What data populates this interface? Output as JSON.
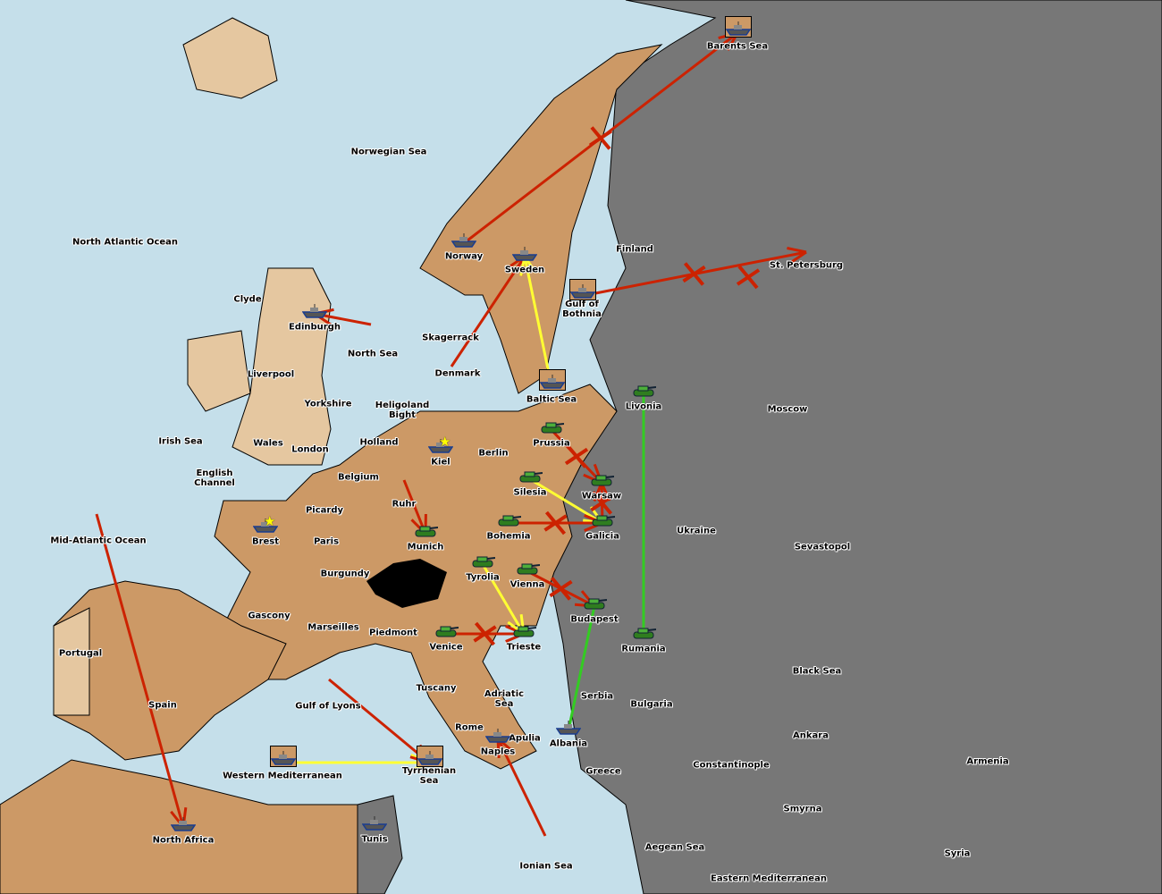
{
  "colors": {
    "water": "#c5dfea",
    "player": "#cc9966",
    "neutral": "#777777",
    "other": "#e5c7a0",
    "move": "#cc2200",
    "support": "#ffff33",
    "convoy": "#33cc22"
  },
  "provinces": [
    "Barents Sea",
    "Norwegian Sea",
    "North Atlantic Ocean",
    "Finland",
    "St. Petersburg",
    "Norway",
    "Sweden",
    "Gulf of\nBothnia",
    "Clyde",
    "Edinburgh",
    "North Sea",
    "Skagerrack",
    "Liverpool",
    "Denmark",
    "Baltic Sea",
    "Yorkshire",
    "Heligoland\nBight",
    "Moscow",
    "Livonia",
    "Irish Sea",
    "Wales",
    "London",
    "Holland",
    "Kiel",
    "Berlin",
    "Prussia",
    "English\nChannel",
    "Belgium",
    "Silesia",
    "Warsaw",
    "Picardy",
    "Ruhr",
    "Ukraine",
    "Brest",
    "Paris",
    "Munich",
    "Bohemia",
    "Galicia",
    "Mid-Atlantic Ocean",
    "Sevastopol",
    "Burgundy",
    "Tyrolia",
    "Vienna",
    "Gascony",
    "Budapest",
    "Marseilles",
    "Piedmont",
    "Venice",
    "Trieste",
    "Rumania",
    "Portugal",
    "Black Sea",
    "Tuscany",
    "Serbia",
    "Adriatic\nSea",
    "Bulgaria",
    "Spain",
    "Gulf of Lyons",
    "Rome",
    "Apulia",
    "Ankara",
    "Albania",
    "Naples",
    "Constantinople",
    "Armenia",
    "Western Mediterranean",
    "Tyrrhenian\nSea",
    "Greece",
    "Smyrna",
    "North Africa",
    "Tunis",
    "Aegean Sea",
    "Syria",
    "Ionian Sea",
    "Eastern Mediterranean"
  ],
  "units": [
    {
      "type": "fleet",
      "at": "Barents Sea",
      "boxed": true
    },
    {
      "type": "fleet",
      "at": "Norway"
    },
    {
      "type": "fleet",
      "at": "Sweden"
    },
    {
      "type": "fleet",
      "at": "Gulf of\nBothnia",
      "boxed": true
    },
    {
      "type": "fleet",
      "at": "Edinburgh"
    },
    {
      "type": "fleet",
      "at": "Baltic Sea",
      "boxed": true
    },
    {
      "type": "fleet",
      "at": "Kiel"
    },
    {
      "type": "fleet",
      "at": "Brest"
    },
    {
      "type": "fleet",
      "at": "Western Mediterranean",
      "boxed": true
    },
    {
      "type": "fleet",
      "at": "Tyrrhenian\nSea",
      "boxed": true
    },
    {
      "type": "fleet",
      "at": "Naples"
    },
    {
      "type": "fleet",
      "at": "Albania"
    },
    {
      "type": "fleet",
      "at": "North Africa"
    },
    {
      "type": "fleet",
      "at": "Tunis"
    },
    {
      "type": "army",
      "at": "Livonia"
    },
    {
      "type": "army",
      "at": "Prussia"
    },
    {
      "type": "army",
      "at": "Silesia"
    },
    {
      "type": "army",
      "at": "Warsaw"
    },
    {
      "type": "army",
      "at": "Munich"
    },
    {
      "type": "army",
      "at": "Bohemia"
    },
    {
      "type": "army",
      "at": "Galicia"
    },
    {
      "type": "army",
      "at": "Tyrolia"
    },
    {
      "type": "army",
      "at": "Vienna"
    },
    {
      "type": "army",
      "at": "Budapest"
    },
    {
      "type": "army",
      "at": "Venice"
    },
    {
      "type": "army",
      "at": "Trieste"
    },
    {
      "type": "army",
      "at": "Rumania"
    }
  ],
  "orders": [
    {
      "kind": "move",
      "from": "Norway",
      "to": "Barents Sea",
      "failed": true
    },
    {
      "kind": "move",
      "from": "Gulf of\nBothnia",
      "to": "St. Petersburg",
      "failed": true
    },
    {
      "kind": "move",
      "from": "North Sea",
      "to": "Edinburgh"
    },
    {
      "kind": "move",
      "from": "Denmark",
      "to": "Sweden"
    },
    {
      "kind": "support",
      "from": "Baltic Sea",
      "to": "Sweden"
    },
    {
      "kind": "move",
      "from": "Prussia",
      "to": "Warsaw",
      "failed": true
    },
    {
      "kind": "support",
      "from": "Silesia",
      "to": "Galicia"
    },
    {
      "kind": "move",
      "from": "Bohemia",
      "to": "Galicia",
      "failed": true
    },
    {
      "kind": "move",
      "from": "Ruhr",
      "to": "Munich"
    },
    {
      "kind": "move",
      "from": "Vienna",
      "to": "Budapest",
      "failed": true
    },
    {
      "kind": "move",
      "from": "Venice",
      "to": "Trieste",
      "failed": true
    },
    {
      "kind": "support",
      "from": "Tyrolia",
      "to": "Trieste"
    },
    {
      "kind": "move",
      "from": "Galicia",
      "to": "Warsaw",
      "failed": true
    },
    {
      "kind": "hold-support",
      "from": "Livonia",
      "to": "Rumania"
    },
    {
      "kind": "hold-support",
      "from": "Albania",
      "to": "Budapest"
    },
    {
      "kind": "support",
      "from": "Western Mediterranean",
      "to": "Tyrrhenian\nSea"
    },
    {
      "kind": "move",
      "from": "Gulf of Lyons",
      "to": "Tyrrhenian\nSea"
    },
    {
      "kind": "move",
      "from": "Mid-Atlantic Ocean",
      "to": "North Africa"
    },
    {
      "kind": "move",
      "from": "Ionian Sea",
      "to": "Naples"
    },
    {
      "kind": "destroyed",
      "from": "St. Petersburg"
    }
  ],
  "home_stars": [
    "Kiel",
    "Brest"
  ]
}
